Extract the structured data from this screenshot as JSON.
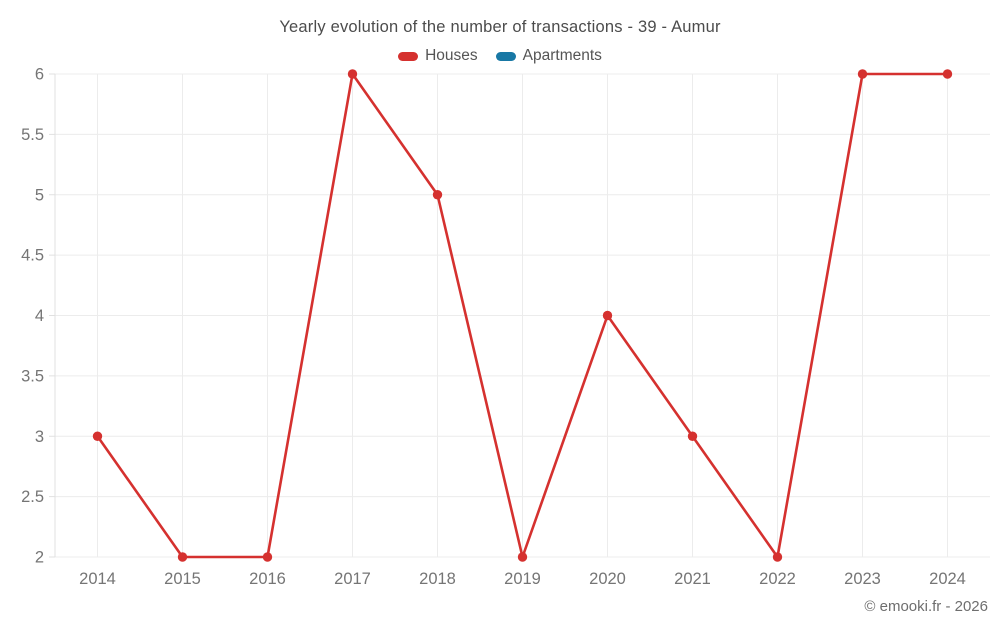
{
  "page": {
    "copyright": "© emooki.fr - 2026"
  },
  "chart_data": {
    "type": "line",
    "title": "Yearly evolution of the number of transactions - 39 - Aumur",
    "categories": [
      "2014",
      "2015",
      "2016",
      "2017",
      "2018",
      "2019",
      "2020",
      "2021",
      "2022",
      "2023",
      "2024"
    ],
    "series": [
      {
        "name": "Houses",
        "color": "#d5312f",
        "values": [
          3,
          2,
          2,
          6,
          5,
          2,
          4,
          3,
          2,
          6,
          6
        ]
      },
      {
        "name": "Apartments",
        "color": "#1878a5",
        "values": []
      }
    ],
    "xlabel": "",
    "ylabel": "",
    "ylim": [
      2,
      6
    ],
    "yticks": [
      2,
      2.5,
      3,
      3.5,
      4,
      4.5,
      5,
      5.5,
      6
    ],
    "grid": true,
    "legend_position": "top"
  },
  "colors": {
    "grid": "#ececec",
    "axis": "#e0e0e0",
    "tick_label": "#757575",
    "title": "#4c4c4c",
    "legend_label": "#555555",
    "copyright": "#6e6e6e"
  }
}
